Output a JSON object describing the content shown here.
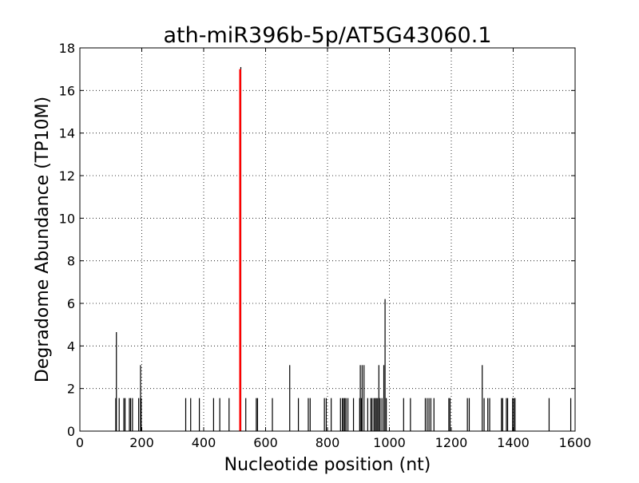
{
  "chart_data": {
    "type": "bar",
    "title": "ath-miR396b-5p/AT5G43060.1",
    "xlabel": "Nucleotide position (nt)",
    "ylabel": "Degradome Abundance (TP10M)",
    "xlim": [
      0,
      1600
    ],
    "ylim": [
      0,
      18
    ],
    "xticks": [
      0,
      200,
      400,
      600,
      800,
      1000,
      1200,
      1400,
      1600
    ],
    "yticks": [
      0,
      2,
      4,
      6,
      8,
      10,
      12,
      14,
      16,
      18
    ],
    "grid": true,
    "colors": {
      "series": "#000000",
      "highlight": "#ff0000",
      "grid": "#000000"
    },
    "series": [
      {
        "values": [
          [
            116,
            1.55
          ],
          [
            118,
            4.65
          ],
          [
            127,
            1.55
          ],
          [
            142,
            1.55
          ],
          [
            146,
            1.55
          ],
          [
            160,
            1.55
          ],
          [
            164,
            1.55
          ],
          [
            170,
            1.55
          ],
          [
            190,
            1.55
          ],
          [
            196,
            3.1
          ],
          [
            198,
            1.55
          ],
          [
            342,
            1.55
          ],
          [
            358,
            1.55
          ],
          [
            386,
            1.55
          ],
          [
            432,
            1.55
          ],
          [
            452,
            1.55
          ],
          [
            482,
            1.55
          ],
          [
            520,
            17.1
          ],
          [
            536,
            1.55
          ],
          [
            570,
            1.55
          ],
          [
            574,
            1.55
          ],
          [
            622,
            1.55
          ],
          [
            678,
            3.1
          ],
          [
            706,
            1.55
          ],
          [
            738,
            1.55
          ],
          [
            744,
            1.55
          ],
          [
            790,
            1.55
          ],
          [
            796,
            1.55
          ],
          [
            812,
            1.55
          ],
          [
            842,
            1.55
          ],
          [
            848,
            1.55
          ],
          [
            852,
            1.55
          ],
          [
            856,
            1.55
          ],
          [
            860,
            1.55
          ],
          [
            866,
            1.55
          ],
          [
            884,
            1.55
          ],
          [
            904,
            1.55
          ],
          [
            906,
            3.1
          ],
          [
            910,
            1.55
          ],
          [
            912,
            3.1
          ],
          [
            918,
            3.1
          ],
          [
            930,
            1.55
          ],
          [
            940,
            1.55
          ],
          [
            944,
            1.55
          ],
          [
            950,
            1.55
          ],
          [
            954,
            1.55
          ],
          [
            958,
            1.55
          ],
          [
            962,
            1.55
          ],
          [
            966,
            3.1
          ],
          [
            970,
            1.55
          ],
          [
            976,
            1.55
          ],
          [
            982,
            3.1
          ],
          [
            986,
            6.2
          ],
          [
            990,
            1.55
          ],
          [
            1046,
            1.55
          ],
          [
            1068,
            1.55
          ],
          [
            1116,
            1.55
          ],
          [
            1122,
            1.55
          ],
          [
            1128,
            1.55
          ],
          [
            1134,
            1.55
          ],
          [
            1144,
            1.55
          ],
          [
            1192,
            1.55
          ],
          [
            1196,
            1.55
          ],
          [
            1252,
            1.55
          ],
          [
            1258,
            1.55
          ],
          [
            1300,
            3.1
          ],
          [
            1306,
            1.55
          ],
          [
            1318,
            1.55
          ],
          [
            1324,
            1.55
          ],
          [
            1362,
            1.55
          ],
          [
            1366,
            1.55
          ],
          [
            1378,
            1.55
          ],
          [
            1382,
            1.55
          ],
          [
            1398,
            1.55
          ],
          [
            1402,
            1.55
          ],
          [
            1406,
            1.55
          ],
          [
            1516,
            1.55
          ],
          [
            1586,
            1.55
          ]
        ]
      }
    ],
    "highlight": {
      "x": 518,
      "y": 17
    }
  }
}
